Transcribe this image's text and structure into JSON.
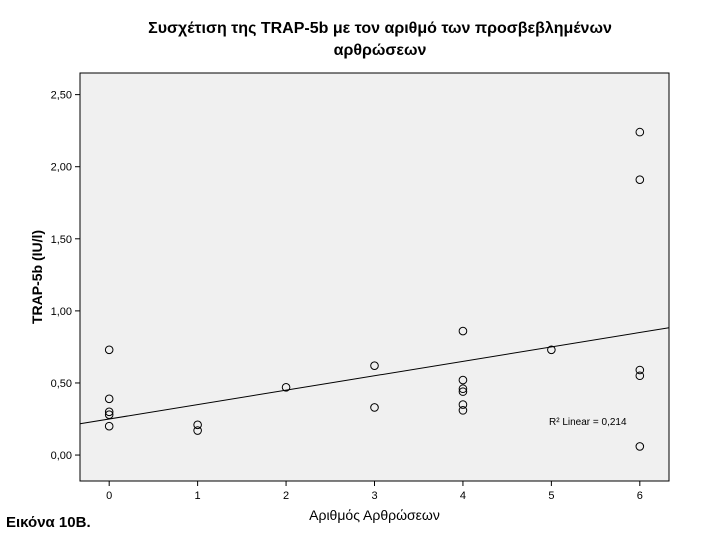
{
  "chart_data": {
    "type": "scatter",
    "title_lines": [
      "Συσχέτιση της TRAP-5b με τον αριθμό των προσβεβλημένων",
      "αρθρώσεων"
    ],
    "xlabel": "Αριθμός Αρθρώσεων",
    "ylabel": "TRAP-5b (IU/l)",
    "xlim": [
      -0.33,
      6.33
    ],
    "ylim": [
      -0.18,
      2.65
    ],
    "x_ticks": [
      0,
      1,
      2,
      3,
      4,
      5,
      6
    ],
    "x_tick_labels": [
      "0",
      "1",
      "2",
      "3",
      "4",
      "5",
      "6"
    ],
    "y_ticks": [
      0,
      0.5,
      1.0,
      1.5,
      2.0,
      2.5
    ],
    "y_tick_labels": [
      "0,00",
      "0,50",
      "1,00",
      "1,50",
      "2,00",
      "2,50"
    ],
    "points": [
      {
        "x": 0,
        "y": 0.73
      },
      {
        "x": 0,
        "y": 0.39
      },
      {
        "x": 0,
        "y": 0.3
      },
      {
        "x": 0,
        "y": 0.28
      },
      {
        "x": 0,
        "y": 0.2
      },
      {
        "x": 1,
        "y": 0.21
      },
      {
        "x": 1,
        "y": 0.17
      },
      {
        "x": 2,
        "y": 0.47
      },
      {
        "x": 3,
        "y": 0.62
      },
      {
        "x": 3,
        "y": 0.33
      },
      {
        "x": 4,
        "y": 0.86
      },
      {
        "x": 4,
        "y": 0.52
      },
      {
        "x": 4,
        "y": 0.46
      },
      {
        "x": 4,
        "y": 0.44
      },
      {
        "x": 4,
        "y": 0.35
      },
      {
        "x": 4,
        "y": 0.31
      },
      {
        "x": 5,
        "y": 0.73
      },
      {
        "x": 6,
        "y": 2.24
      },
      {
        "x": 6,
        "y": 1.91
      },
      {
        "x": 6,
        "y": 0.59
      },
      {
        "x": 6,
        "y": 0.55
      },
      {
        "x": 6,
        "y": 0.06
      }
    ],
    "fit_line": {
      "intercept": 0.25,
      "slope": 0.1
    },
    "r2_label": "R² Linear = 0,214",
    "r2_position": "bottom-right",
    "grid": false,
    "plot_background": "#f0f0f0",
    "marker_color": "#000000"
  },
  "caption": "Εικόνα 10Β."
}
